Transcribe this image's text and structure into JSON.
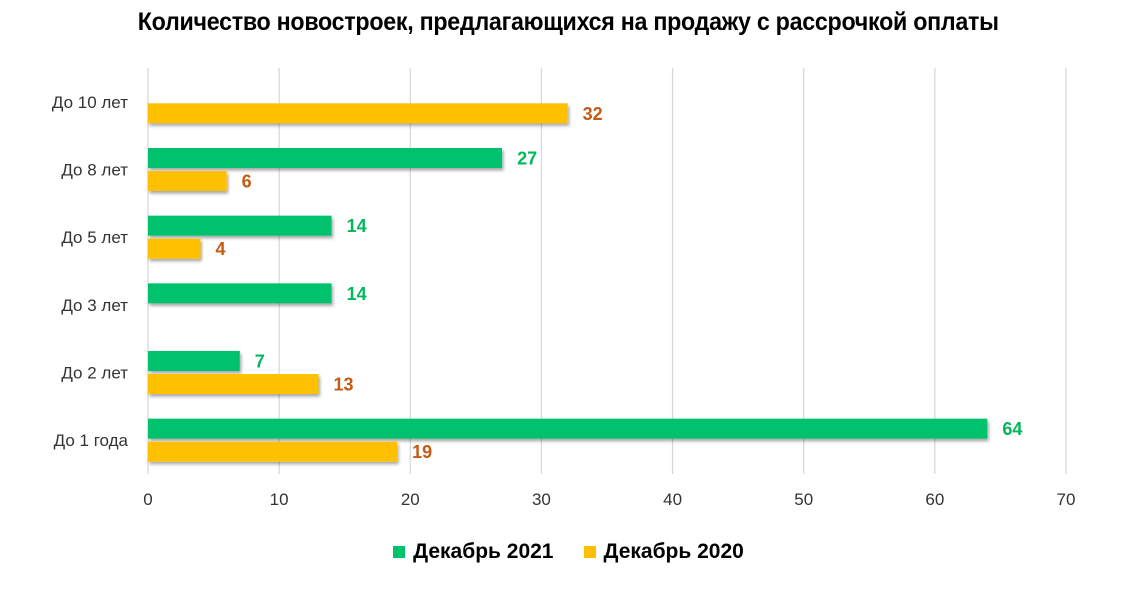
{
  "chart_data": {
    "type": "bar",
    "orientation": "horizontal",
    "title": "Количество новостроек, предлагающихся на продажу с рассрочкой оплаты",
    "categories": [
      "До 10 лет",
      "До 8 лет",
      "До 5 лет",
      "До 3 лет",
      "До 2 лет",
      "До 1 года"
    ],
    "series": [
      {
        "name": "Декабрь 2021",
        "color": "#00C26E",
        "label_color": "#00B85C",
        "values": [
          null,
          27,
          14,
          14,
          7,
          64
        ]
      },
      {
        "name": "Декабрь 2020",
        "color": "#FFC000",
        "label_color": "#C55A11",
        "values": [
          32,
          6,
          4,
          null,
          13,
          19
        ]
      }
    ],
    "xlim": [
      0,
      70
    ],
    "x_ticks": [
      "0",
      "10",
      "20",
      "30",
      "40",
      "50",
      "60",
      "70"
    ],
    "grid": true,
    "legend_position": "bottom"
  }
}
